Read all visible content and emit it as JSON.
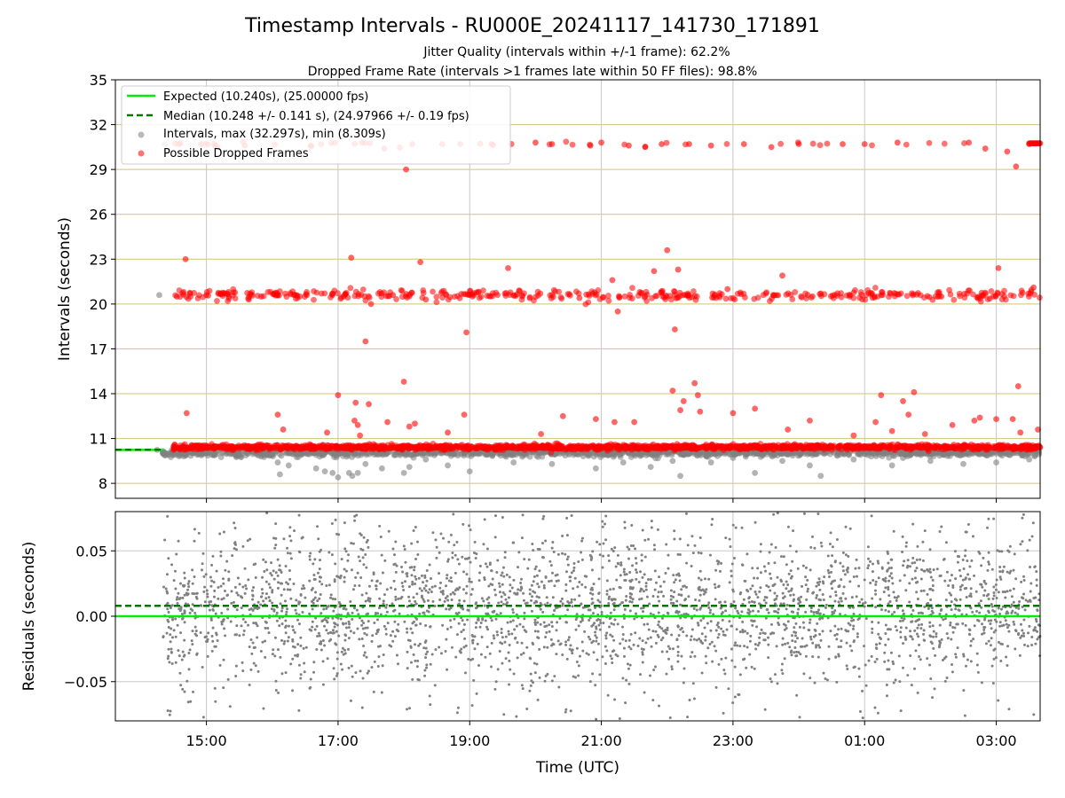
{
  "title": "Timestamp Intervals - RU000E_20241117_141730_171891",
  "subtitle_lines": [
    "Jitter Quality (intervals within +/-1 frame): 62.2%",
    "Dropped Frame Rate (intervals >1 frames late within 50 FF files): 98.8%"
  ],
  "colors": {
    "expected": "#00ee00",
    "median": "#007700",
    "intervals": "#808080",
    "dropped": "#ff0000",
    "hgrid": "#d2c37a",
    "vgrid": "#c8c8c8"
  },
  "chart_data": [
    {
      "type": "scatter",
      "panel": "intervals",
      "xlabel": "",
      "ylabel": "Intervals (seconds)",
      "x_axis": "time",
      "xlim": [
        "13:37",
        "03:40"
      ],
      "ylim": [
        7,
        35
      ],
      "yticks": [
        8,
        11,
        14,
        17,
        20,
        23,
        26,
        29,
        32,
        35
      ],
      "grid": true,
      "legend_position": "upper-left",
      "legend": [
        {
          "label": "Expected (10.240s), (25.00000 fps)",
          "style": "solid-line",
          "color": "#00ee00"
        },
        {
          "label": "Median (10.248 +/- 0.141 s), (24.97966 +/- 0.19 fps)",
          "style": "dashed-line",
          "color": "#007700"
        },
        {
          "label": "Intervals, max (32.297s), min (8.309s)",
          "style": "dot",
          "color": "#808080"
        },
        {
          "label": "Possible Dropped Frames",
          "style": "dot",
          "color": "#ff0000"
        }
      ],
      "reference_lines": {
        "expected": 10.24,
        "median": 10.248
      },
      "series": [
        {
          "name": "Intervals, max (32.297s), min (8.309s)",
          "color": "#808080",
          "summary": "Dense band of intervals near 10.2 s from 14:15 to 03:40 UTC, with scattered low outliers down to about 8.3 s",
          "points": [
            [
              "14:15",
              10.24
            ],
            [
              "14:17",
              20.6
            ],
            [
              "14:22",
              30.7
            ],
            [
              "14:40",
              10.1
            ],
            [
              "15:05",
              9.9
            ],
            [
              "15:30",
              10.0
            ],
            [
              "15:50",
              9.8
            ],
            [
              "16:05",
              9.4
            ],
            [
              "16:07",
              8.6
            ],
            [
              "16:15",
              9.2
            ],
            [
              "16:40",
              9.0
            ],
            [
              "16:48",
              8.8
            ],
            [
              "16:55",
              8.7
            ],
            [
              "17:00",
              8.4
            ],
            [
              "17:10",
              8.7
            ],
            [
              "17:13",
              8.5
            ],
            [
              "17:18",
              8.7
            ],
            [
              "17:25",
              9.3
            ],
            [
              "17:40",
              9.0
            ],
            [
              "18:00",
              8.7
            ],
            [
              "18:05",
              9.1
            ],
            [
              "18:20",
              9.6
            ],
            [
              "18:40",
              9.2
            ],
            [
              "19:00",
              8.8
            ],
            [
              "19:40",
              9.4
            ],
            [
              "20:15",
              9.3
            ],
            [
              "20:55",
              9.0
            ],
            [
              "21:20",
              9.4
            ],
            [
              "21:45",
              9.1
            ],
            [
              "22:05",
              9.5
            ],
            [
              "22:12",
              8.5
            ],
            [
              "22:40",
              9.4
            ],
            [
              "23:00",
              9.7
            ],
            [
              "23:20",
              8.7
            ],
            [
              "23:45",
              9.5
            ],
            [
              "00:10",
              9.2
            ],
            [
              "00:20",
              8.5
            ],
            [
              "00:50",
              9.6
            ],
            [
              "01:25",
              9.2
            ],
            [
              "01:35",
              9.7
            ],
            [
              "02:00",
              9.5
            ],
            [
              "02:30",
              9.3
            ],
            [
              "03:00",
              9.4
            ],
            [
              "03:30",
              9.6
            ]
          ]
        },
        {
          "name": "Possible Dropped Frames",
          "color": "#ff0000",
          "summary": "Bands of late intervals near 10.5 s, 20.6 s and 30.7 s from 14:30 to 03:40 UTC, plus scattered values between the bands",
          "points": [
            [
              "14:33",
              20.5
            ],
            [
              "14:35",
              30.7
            ],
            [
              "14:41",
              23.0
            ],
            [
              "14:42",
              12.7
            ],
            [
              "14:45",
              20.7
            ],
            [
              "14:55",
              30.7
            ],
            [
              "15:00",
              20.6
            ],
            [
              "15:10",
              30.5
            ],
            [
              "15:20",
              20.8
            ],
            [
              "15:35",
              30.6
            ],
            [
              "15:50",
              20.5
            ],
            [
              "16:05",
              12.6
            ],
            [
              "16:10",
              11.6
            ],
            [
              "16:20",
              20.6
            ],
            [
              "16:35",
              30.6
            ],
            [
              "16:50",
              11.4
            ],
            [
              "16:55",
              20.7
            ],
            [
              "17:00",
              13.9
            ],
            [
              "17:05",
              20.5
            ],
            [
              "17:12",
              23.1
            ],
            [
              "17:15",
              12.2
            ],
            [
              "17:16",
              13.4
            ],
            [
              "17:18",
              11.9
            ],
            [
              "17:20",
              11.2
            ],
            [
              "17:22",
              30.8
            ],
            [
              "17:25",
              17.5
            ],
            [
              "17:28",
              13.3
            ],
            [
              "17:30",
              20.0
            ],
            [
              "17:42",
              30.4
            ],
            [
              "17:45",
              12.1
            ],
            [
              "17:50",
              20.6
            ],
            [
              "18:00",
              14.8
            ],
            [
              "18:02",
              29.0
            ],
            [
              "18:05",
              11.8
            ],
            [
              "18:10",
              12.0
            ],
            [
              "18:15",
              22.8
            ],
            [
              "18:20",
              20.3
            ],
            [
              "18:35",
              30.7
            ],
            [
              "18:40",
              11.4
            ],
            [
              "18:55",
              12.6
            ],
            [
              "18:57",
              18.1
            ],
            [
              "19:00",
              20.6
            ],
            [
              "19:20",
              30.7
            ],
            [
              "19:35",
              22.4
            ],
            [
              "19:45",
              20.9
            ],
            [
              "20:00",
              30.8
            ],
            [
              "20:05",
              11.3
            ],
            [
              "20:15",
              30.7
            ],
            [
              "20:25",
              12.5
            ],
            [
              "20:40",
              20.4
            ],
            [
              "20:50",
              30.6
            ],
            [
              "20:55",
              12.3
            ],
            [
              "21:00",
              30.8
            ],
            [
              "21:10",
              21.6
            ],
            [
              "21:12",
              12.1
            ],
            [
              "21:15",
              19.5
            ],
            [
              "21:25",
              30.6
            ],
            [
              "21:30",
              12.1
            ],
            [
              "21:35",
              20.8
            ],
            [
              "21:40",
              30.5
            ],
            [
              "21:48",
              22.2
            ],
            [
              "21:55",
              30.7
            ],
            [
              "22:00",
              23.6
            ],
            [
              "22:05",
              14.2
            ],
            [
              "22:07",
              18.3
            ],
            [
              "22:10",
              22.3
            ],
            [
              "22:12",
              12.9
            ],
            [
              "22:15",
              13.5
            ],
            [
              "22:20",
              30.7
            ],
            [
              "22:25",
              14.7
            ],
            [
              "22:28",
              13.9
            ],
            [
              "22:30",
              12.8
            ],
            [
              "22:40",
              30.6
            ],
            [
              "22:55",
              21.0
            ],
            [
              "23:00",
              12.7
            ],
            [
              "23:10",
              30.7
            ],
            [
              "23:20",
              13.0
            ],
            [
              "23:35",
              30.5
            ],
            [
              "23:45",
              21.9
            ],
            [
              "23:50",
              11.6
            ],
            [
              "00:00",
              30.7
            ],
            [
              "00:10",
              12.2
            ],
            [
              "00:20",
              20.7
            ],
            [
              "00:40",
              30.7
            ],
            [
              "00:50",
              11.2
            ],
            [
              "01:00",
              30.7
            ],
            [
              "01:10",
              12.1
            ],
            [
              "01:15",
              13.9
            ],
            [
              "01:25",
              11.5
            ],
            [
              "01:30",
              30.8
            ],
            [
              "01:35",
              13.5
            ],
            [
              "01:40",
              12.6
            ],
            [
              "01:45",
              14.1
            ],
            [
              "01:55",
              11.3
            ],
            [
              "02:10",
              20.5
            ],
            [
              "02:20",
              11.9
            ],
            [
              "02:35",
              30.8
            ],
            [
              "02:40",
              12.2
            ],
            [
              "02:45",
              12.4
            ],
            [
              "02:50",
              30.4
            ],
            [
              "03:00",
              12.3
            ],
            [
              "03:02",
              22.4
            ],
            [
              "03:10",
              30.2
            ],
            [
              "03:15",
              12.3
            ],
            [
              "03:18",
              29.2
            ],
            [
              "03:20",
              14.5
            ],
            [
              "03:22",
              11.4
            ],
            [
              "03:30",
              30.7
            ],
            [
              "03:34",
              21.1
            ],
            [
              "03:38",
              11.6
            ]
          ]
        }
      ]
    },
    {
      "type": "scatter",
      "panel": "residuals",
      "xlabel": "Time (UTC)",
      "ylabel": "Residuals (seconds)",
      "x_axis": "time",
      "xlim": [
        "13:37",
        "03:40"
      ],
      "ylim": [
        -0.08,
        0.08
      ],
      "xticks": [
        "15:00",
        "17:00",
        "19:00",
        "21:00",
        "23:00",
        "01:00",
        "03:00"
      ],
      "yticks": [
        0.05,
        0.0,
        -0.05
      ],
      "ytick_labels": [
        "0.05",
        "0.00",
        "−0.05"
      ],
      "grid": true,
      "reference_lines": {
        "expected": 0.0,
        "median": 0.008
      },
      "series": [
        {
          "color": "#808080",
          "summary": "Residuals from 14:20 to 03:40 UTC scattered mostly within +/-0.05 s around 0, spanning the full -0.08 to 0.08 range",
          "range_x": [
            "14:20",
            "03:40"
          ],
          "range_y": [
            -0.08,
            0.08
          ]
        }
      ]
    }
  ]
}
